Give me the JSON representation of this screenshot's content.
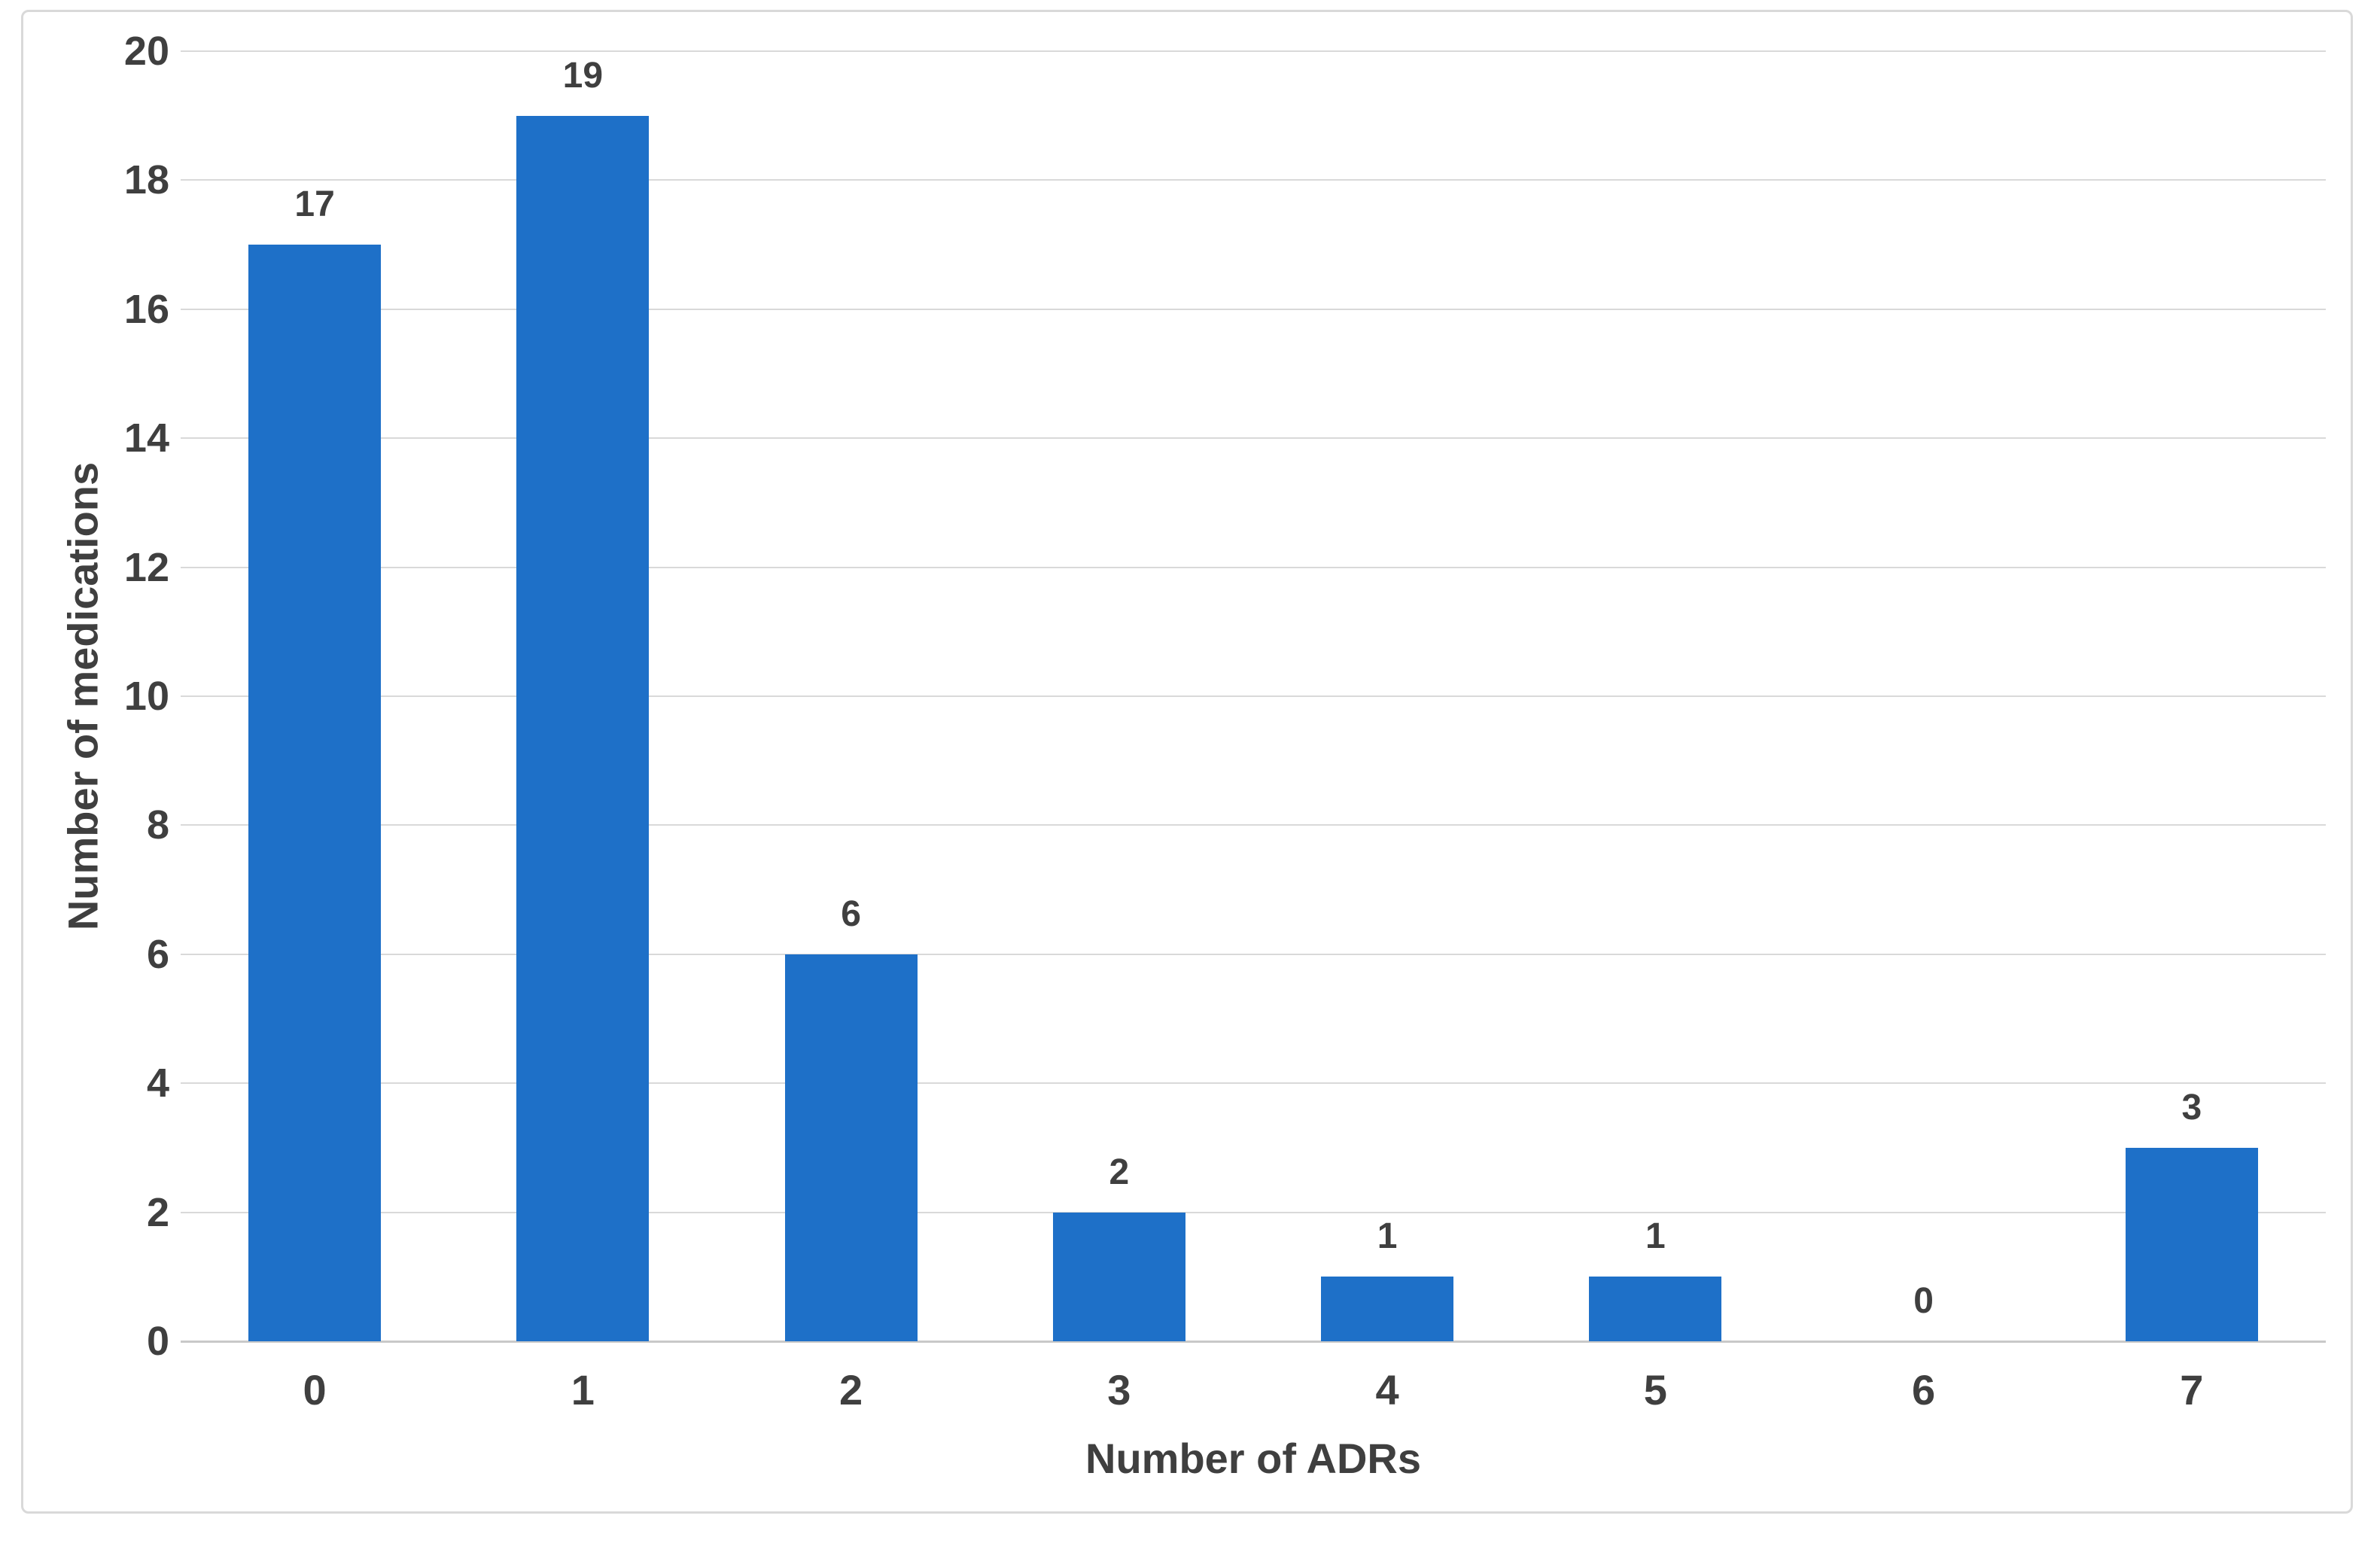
{
  "figure": {
    "background_color": "#ffffff",
    "border_color": "#d9d9d9"
  },
  "chart_data": {
    "type": "bar",
    "title": "",
    "categories": [
      "0",
      "1",
      "2",
      "3",
      "4",
      "5",
      "6",
      "7"
    ],
    "values": [
      17,
      19,
      6,
      2,
      1,
      1,
      0,
      3
    ],
    "data_labels": [
      "17",
      "19",
      "6",
      "2",
      "1",
      "1",
      "0",
      "3"
    ],
    "xlabel": "Number of ADRs",
    "ylabel": "Number of medications",
    "ylim": [
      0,
      20
    ],
    "ytick_step": 2,
    "ytick_labels": [
      "0",
      "2",
      "4",
      "6",
      "8",
      "10",
      "12",
      "14",
      "16",
      "18",
      "20"
    ],
    "grid": true,
    "legend_position": "none",
    "bar_color": "#1E70C8",
    "text_color": "#3f3f3f",
    "gridline_color": "#d9d9d9",
    "axis_line_color": "#c9c9c9"
  }
}
